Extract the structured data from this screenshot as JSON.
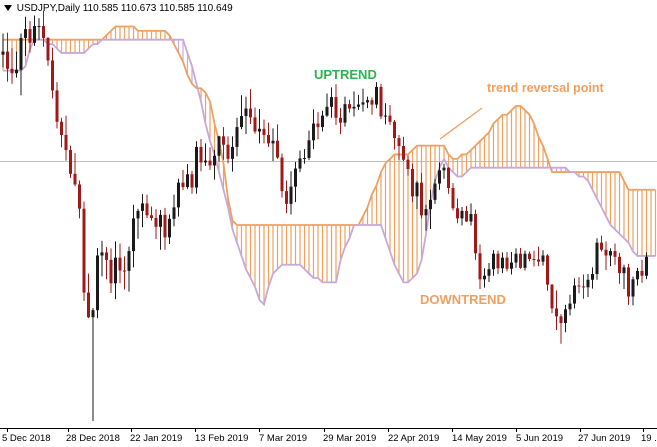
{
  "chart_title": "USDJPY,Daily  110.585 110.673 110.585 110.649",
  "annotations": {
    "uptrend": "UPTREND",
    "downtrend": "DOWNTREND",
    "reversal": "trend reversal point"
  },
  "colors": {
    "background": "#ffffff",
    "candle_bull": "#1a1a1a",
    "candle_bear": "#a01818",
    "cloud_bull": "#f0a060",
    "cloud_bear": "#c8a8d8",
    "uptrend_text": "#2fb24a",
    "annotation_text": "#f0a060",
    "price_line": "#c0c0c0"
  },
  "x_axis": {
    "labels": [
      "5 Dec 2018",
      "28 Dec 2018",
      "22 Jan 2019",
      "13 Feb 2019",
      "7 Mar 2019",
      "29 Mar 2019",
      "22 Apr 2019",
      "14 May 2019",
      "5 Jun 2019",
      "27 Jun 2019",
      "19 ..."
    ]
  },
  "chart_data": {
    "type": "candlestick",
    "symbol": "USDJPY",
    "timeframe": "Daily",
    "last_bar": {
      "open": 110.585,
      "high": 110.673,
      "low": 110.585,
      "close": 110.649
    },
    "ylim": [
      104.6,
      114.3
    ],
    "price_line": 110.64,
    "ohlc": [
      [
        113.06,
        113.54,
        112.77,
        113.13
      ],
      [
        113.13,
        113.56,
        112.45,
        112.74
      ],
      [
        112.74,
        113.21,
        112.4,
        112.64
      ],
      [
        112.64,
        113.13,
        112.54,
        112.72
      ],
      [
        112.72,
        113.54,
        112.14,
        113.44
      ],
      [
        113.44,
        113.92,
        113.03,
        113.64
      ],
      [
        113.64,
        113.82,
        113.11,
        113.33
      ],
      [
        113.33,
        113.95,
        113.26,
        113.71
      ],
      [
        113.71,
        113.89,
        113.4,
        113.71
      ],
      [
        113.71,
        114.06,
        113.24,
        113.44
      ],
      [
        113.44,
        113.46,
        112.81,
        112.93
      ],
      [
        112.93,
        113.22,
        112.07,
        112.25
      ],
      [
        112.25,
        112.44,
        111.39,
        111.54
      ],
      [
        111.54,
        111.63,
        110.96,
        111.24
      ],
      [
        111.24,
        111.68,
        110.66,
        110.9
      ],
      [
        110.9,
        111.0,
        110.27,
        110.36
      ],
      [
        110.36,
        110.83,
        110.08,
        110.12
      ],
      [
        110.12,
        110.21,
        109.35,
        109.57
      ],
      [
        109.57,
        109.73,
        107.48,
        107.67
      ],
      [
        107.67,
        108.1,
        107.09,
        107.11
      ],
      [
        107.11,
        107.32,
        104.76,
        107.27
      ],
      [
        107.27,
        108.68,
        107.09,
        108.51
      ],
      [
        108.51,
        108.84,
        108.04,
        108.58
      ],
      [
        108.58,
        108.7,
        107.97,
        108.41
      ],
      [
        108.41,
        108.67,
        107.66,
        107.88
      ],
      [
        107.88,
        108.83,
        107.52,
        108.46
      ],
      [
        108.46,
        108.78,
        107.88,
        108.17
      ],
      [
        108.17,
        108.49,
        107.74,
        108.16
      ],
      [
        108.16,
        108.71,
        107.69,
        108.61
      ],
      [
        108.61,
        109.66,
        108.24,
        109.35
      ],
      [
        109.35,
        109.57,
        108.89,
        109.52
      ],
      [
        109.52,
        109.9,
        109.15,
        109.69
      ],
      [
        109.69,
        109.89,
        109.36,
        109.42
      ],
      [
        109.42,
        109.62,
        109.3,
        109.36
      ],
      [
        109.36,
        109.56,
        108.88,
        109.16
      ],
      [
        109.16,
        109.54,
        108.64,
        109.43
      ],
      [
        109.43,
        109.59,
        108.64,
        108.92
      ],
      [
        108.92,
        109.44,
        108.77,
        109.34
      ],
      [
        109.34,
        109.89,
        109.17,
        109.6
      ],
      [
        109.6,
        110.25,
        109.39,
        110.16
      ],
      [
        110.16,
        110.45,
        109.99,
        110.06
      ],
      [
        110.06,
        110.58,
        110.02,
        110.35
      ],
      [
        110.35,
        110.43,
        109.91,
        110.05
      ],
      [
        110.05,
        111.1,
        109.91,
        110.97
      ],
      [
        110.97,
        111.15,
        110.42,
        110.62
      ],
      [
        110.62,
        111.05,
        110.54,
        110.66
      ],
      [
        110.66,
        110.96,
        110.45,
        110.55
      ],
      [
        110.55,
        110.9,
        110.23,
        110.77
      ],
      [
        110.77,
        111.22,
        110.64,
        111.21
      ],
      [
        111.21,
        111.42,
        110.68,
        111.02
      ],
      [
        111.02,
        111.21,
        110.6,
        110.7
      ],
      [
        110.7,
        111.21,
        110.41,
        110.97
      ],
      [
        110.97,
        111.63,
        110.76,
        111.42
      ],
      [
        111.42,
        112.14,
        111.37,
        111.67
      ],
      [
        111.67,
        112.11,
        111.26,
        111.84
      ],
      [
        111.84,
        112.28,
        111.49,
        111.64
      ],
      [
        111.64,
        111.86,
        111.27,
        111.32
      ],
      [
        111.32,
        111.83,
        111.05,
        111.38
      ],
      [
        111.38,
        111.59,
        111.05,
        111.24
      ],
      [
        111.24,
        111.52,
        110.97,
        111.05
      ],
      [
        111.05,
        111.39,
        110.65,
        111.11
      ],
      [
        111.11,
        111.48,
        110.7,
        110.73
      ],
      [
        110.73,
        110.82,
        109.82,
        109.97
      ],
      [
        109.97,
        110.21,
        109.47,
        109.68
      ],
      [
        109.68,
        110.42,
        109.44,
        110.07
      ],
      [
        110.07,
        110.63,
        109.72,
        110.48
      ],
      [
        110.48,
        110.89,
        110.4,
        110.71
      ],
      [
        110.71,
        110.92,
        110.59,
        110.72
      ],
      [
        110.72,
        111.34,
        110.67,
        111.12
      ],
      [
        111.12,
        111.82,
        110.92,
        111.5
      ],
      [
        111.5,
        111.76,
        111.14,
        111.42
      ],
      [
        111.42,
        111.79,
        111.32,
        111.68
      ],
      [
        111.68,
        112.18,
        111.65,
        111.88
      ],
      [
        111.88,
        112.32,
        111.63,
        112.1
      ],
      [
        112.1,
        112.39,
        111.47,
        111.63
      ],
      [
        111.63,
        111.85,
        111.26,
        111.52
      ],
      [
        111.52,
        112.11,
        111.43,
        111.94
      ],
      [
        111.94,
        112.04,
        111.75,
        111.84
      ],
      [
        111.84,
        112.23,
        111.66,
        111.88
      ],
      [
        111.88,
        112.15,
        111.81,
        111.93
      ],
      [
        111.93,
        112.29,
        111.77,
        111.98
      ],
      [
        111.98,
        112.11,
        111.85,
        112.03
      ],
      [
        112.03,
        112.09,
        111.7,
        111.93
      ],
      [
        111.93,
        112.44,
        111.85,
        112.33
      ],
      [
        112.33,
        112.4,
        111.6,
        111.66
      ],
      [
        111.66,
        111.96,
        111.48,
        111.68
      ],
      [
        111.68,
        111.92,
        111.47,
        111.54
      ],
      [
        111.54,
        111.58,
        110.91,
        111.17
      ],
      [
        111.17,
        111.24,
        110.68,
        110.99
      ],
      [
        110.99,
        111.2,
        110.65,
        110.68
      ],
      [
        110.68,
        110.78,
        110.32,
        110.47
      ],
      [
        110.47,
        110.59,
        109.72,
        109.85
      ],
      [
        109.85,
        110.2,
        109.56,
        110.16
      ],
      [
        110.16,
        110.38,
        109.35,
        109.42
      ],
      [
        109.42,
        109.66,
        109.07,
        109.56
      ],
      [
        109.56,
        110.0,
        109.11,
        109.77
      ],
      [
        109.77,
        110.25,
        109.68,
        110.14
      ],
      [
        110.14,
        110.62,
        110.0,
        110.44
      ],
      [
        110.44,
        110.59,
        110.25,
        110.5
      ],
      [
        110.5,
        110.51,
        109.91,
        110.04
      ],
      [
        110.04,
        110.15,
        109.53,
        109.58
      ],
      [
        109.58,
        109.8,
        109.24,
        109.35
      ],
      [
        109.35,
        109.61,
        109.19,
        109.52
      ],
      [
        109.52,
        109.63,
        109.27,
        109.28
      ],
      [
        109.28,
        109.69,
        109.19,
        109.45
      ],
      [
        109.45,
        109.55,
        108.41,
        108.56
      ],
      [
        108.56,
        108.76,
        107.75,
        107.97
      ],
      [
        107.97,
        108.22,
        107.78,
        108.05
      ],
      [
        108.05,
        108.34,
        107.91,
        108.2
      ],
      [
        108.2,
        108.63,
        108.05,
        108.55
      ],
      [
        108.55,
        108.62,
        108.09,
        108.22
      ],
      [
        108.22,
        108.58,
        108.11,
        108.46
      ],
      [
        108.46,
        108.59,
        108.15,
        108.21
      ],
      [
        108.21,
        108.59,
        108.08,
        108.35
      ],
      [
        108.35,
        108.67,
        108.23,
        108.55
      ],
      [
        108.55,
        108.68,
        108.21,
        108.23
      ],
      [
        108.23,
        108.62,
        108.17,
        108.55
      ],
      [
        108.55,
        108.6,
        108.38,
        108.43
      ],
      [
        108.43,
        108.62,
        108.26,
        108.42
      ],
      [
        108.42,
        108.71,
        108.27,
        108.37
      ],
      [
        108.37,
        108.63,
        108.28,
        108.51
      ],
      [
        108.51,
        108.54,
        107.71,
        107.85
      ],
      [
        107.85,
        107.86,
        107.2,
        107.31
      ],
      [
        107.31,
        107.72,
        106.82,
        107.13
      ],
      [
        107.13,
        107.18,
        106.51,
        106.98
      ],
      [
        106.98,
        107.39,
        106.77,
        107.29
      ],
      [
        107.29,
        107.62,
        107.15,
        107.42
      ],
      [
        107.42,
        107.99,
        107.31,
        107.83
      ],
      [
        107.83,
        108.02,
        107.65,
        107.81
      ],
      [
        107.81,
        108.08,
        107.53,
        107.79
      ],
      [
        107.79,
        108.09,
        107.57,
        107.96
      ],
      [
        107.96,
        108.24,
        107.76,
        108.09
      ],
      [
        108.09,
        108.9,
        107.96,
        108.8
      ],
      [
        108.8,
        108.96,
        108.6,
        108.64
      ],
      [
        108.64,
        108.83,
        108.18,
        108.51
      ],
      [
        108.51,
        108.67,
        108.27,
        108.61
      ],
      [
        108.61,
        108.78,
        108.3,
        108.48
      ],
      [
        108.48,
        108.57,
        107.87,
        108.11
      ],
      [
        108.11,
        108.3,
        107.75,
        108.24
      ],
      [
        108.24,
        108.32,
        107.39,
        107.58
      ],
      [
        107.58,
        108.03,
        107.38,
        107.97
      ],
      [
        107.97,
        108.23,
        107.83,
        108.16
      ],
      [
        108.16,
        108.41,
        107.89,
        108.05
      ],
      [
        108.05,
        108.58,
        107.97,
        108.48
      ]
    ],
    "ichimoku_cloud": [
      [
        113.4,
        112.7
      ],
      [
        113.4,
        112.7
      ],
      [
        113.4,
        112.7
      ],
      [
        113.4,
        112.7
      ],
      [
        113.4,
        112.7
      ],
      [
        113.4,
        112.8
      ],
      [
        113.4,
        113.2
      ],
      [
        113.4,
        113.4
      ],
      [
        113.4,
        113.4
      ],
      [
        113.4,
        113.4
      ],
      [
        113.4,
        113.3
      ],
      [
        113.4,
        113.3
      ],
      [
        113.4,
        113.2
      ],
      [
        113.4,
        113.1
      ],
      [
        113.4,
        113.1
      ],
      [
        113.4,
        113.1
      ],
      [
        113.4,
        113.1
      ],
      [
        113.4,
        113.1
      ],
      [
        113.4,
        113.1
      ],
      [
        113.4,
        113.2
      ],
      [
        113.4,
        113.3
      ],
      [
        113.4,
        113.3
      ],
      [
        113.4,
        113.4
      ],
      [
        113.5,
        113.4
      ],
      [
        113.6,
        113.4
      ],
      [
        113.7,
        113.4
      ],
      [
        113.7,
        113.4
      ],
      [
        113.7,
        113.4
      ],
      [
        113.7,
        113.4
      ],
      [
        113.7,
        113.4
      ],
      [
        113.6,
        113.4
      ],
      [
        113.6,
        113.4
      ],
      [
        113.6,
        113.4
      ],
      [
        113.6,
        113.4
      ],
      [
        113.6,
        113.4
      ],
      [
        113.6,
        113.4
      ],
      [
        113.6,
        113.4
      ],
      [
        113.5,
        113.4
      ],
      [
        113.3,
        113.4
      ],
      [
        113.1,
        113.4
      ],
      [
        112.9,
        113.4
      ],
      [
        112.6,
        113.1
      ],
      [
        112.4,
        112.8
      ],
      [
        112.3,
        112.4
      ],
      [
        112.3,
        112.0
      ],
      [
        112.2,
        111.5
      ],
      [
        112.0,
        111.1
      ],
      [
        111.5,
        110.8
      ],
      [
        111.1,
        110.4
      ],
      [
        110.6,
        110.0
      ],
      [
        109.8,
        109.6
      ],
      [
        109.3,
        109.1
      ],
      [
        109.2,
        108.8
      ],
      [
        109.2,
        108.5
      ],
      [
        109.2,
        108.2
      ],
      [
        109.2,
        108.0
      ],
      [
        109.2,
        107.8
      ],
      [
        109.2,
        107.5
      ],
      [
        109.2,
        107.4
      ],
      [
        109.2,
        107.8
      ],
      [
        109.2,
        108.1
      ],
      [
        109.2,
        108.2
      ],
      [
        109.2,
        108.3
      ],
      [
        109.2,
        108.3
      ],
      [
        109.2,
        108.3
      ],
      [
        109.2,
        108.3
      ],
      [
        109.2,
        108.3
      ],
      [
        109.2,
        108.2
      ],
      [
        109.2,
        108.1
      ],
      [
        109.2,
        108.0
      ],
      [
        109.2,
        108.0
      ],
      [
        109.2,
        107.9
      ],
      [
        109.2,
        107.9
      ],
      [
        109.2,
        107.9
      ],
      [
        109.2,
        107.9
      ],
      [
        109.2,
        108.4
      ],
      [
        109.2,
        108.7
      ],
      [
        109.2,
        108.9
      ],
      [
        109.2,
        109.2
      ],
      [
        109.2,
        109.2
      ],
      [
        109.4,
        109.2
      ],
      [
        109.6,
        109.2
      ],
      [
        109.9,
        109.2
      ],
      [
        110.1,
        109.2
      ],
      [
        110.4,
        109.2
      ],
      [
        110.6,
        108.9
      ],
      [
        110.7,
        108.6
      ],
      [
        110.8,
        108.3
      ],
      [
        110.8,
        108.1
      ],
      [
        110.8,
        107.9
      ],
      [
        110.8,
        107.9
      ],
      [
        110.9,
        108.0
      ],
      [
        111.0,
        108.1
      ],
      [
        111.0,
        108.4
      ],
      [
        111.0,
        109.0
      ],
      [
        111.0,
        109.7
      ],
      [
        111.0,
        110.2
      ],
      [
        111.0,
        110.5
      ],
      [
        111.0,
        110.7
      ],
      [
        110.8,
        110.5
      ],
      [
        110.7,
        110.4
      ],
      [
        110.7,
        110.3
      ],
      [
        110.8,
        110.3
      ],
      [
        110.8,
        110.4
      ],
      [
        110.9,
        110.5
      ],
      [
        111.0,
        110.5
      ],
      [
        111.1,
        110.5
      ],
      [
        111.2,
        110.5
      ],
      [
        111.3,
        110.5
      ],
      [
        111.5,
        110.5
      ],
      [
        111.6,
        110.5
      ],
      [
        111.7,
        110.5
      ],
      [
        111.7,
        110.5
      ],
      [
        111.8,
        110.5
      ],
      [
        111.9,
        110.5
      ],
      [
        111.9,
        110.5
      ],
      [
        111.8,
        110.5
      ],
      [
        111.7,
        110.5
      ],
      [
        111.5,
        110.5
      ],
      [
        111.2,
        110.5
      ],
      [
        111.0,
        110.5
      ],
      [
        110.7,
        110.5
      ],
      [
        110.4,
        110.5
      ],
      [
        110.4,
        110.5
      ],
      [
        110.4,
        110.5
      ],
      [
        110.4,
        110.5
      ],
      [
        110.4,
        110.4
      ],
      [
        110.4,
        110.4
      ],
      [
        110.4,
        110.3
      ],
      [
        110.4,
        110.3
      ],
      [
        110.4,
        110.2
      ],
      [
        110.4,
        110.0
      ],
      [
        110.4,
        109.8
      ],
      [
        110.4,
        109.6
      ],
      [
        110.4,
        109.4
      ],
      [
        110.4,
        109.2
      ],
      [
        110.4,
        109.1
      ],
      [
        110.4,
        109.0
      ],
      [
        110.2,
        108.9
      ],
      [
        110.0,
        108.8
      ],
      [
        110.0,
        108.6
      ],
      [
        110.0,
        108.5
      ],
      [
        110.0,
        108.5
      ],
      [
        110.0,
        108.5
      ],
      [
        110.0,
        108.5
      ],
      [
        110.0,
        108.5
      ]
    ]
  }
}
